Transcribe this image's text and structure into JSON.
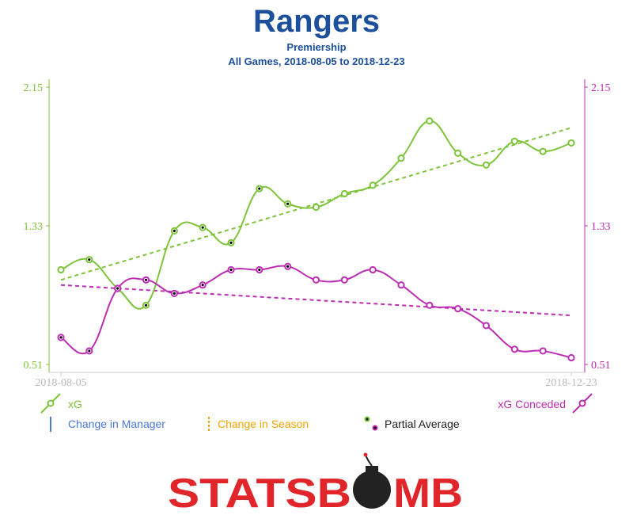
{
  "header": {
    "title": "Rangers",
    "subtitle": "Premiership",
    "range": "All Games, 2018-08-05 to 2018-12-23"
  },
  "colors": {
    "xg": "#7dc43a",
    "xga": "#bd2db4",
    "title": "#1c4f9c",
    "manager": "#4a78d8",
    "season": "#f0a400",
    "logo": "#e0262b",
    "bomb": "#222222"
  },
  "chart_data": {
    "type": "line",
    "x_start_label": "2018-08-05",
    "x_end_label": "2018-12-23",
    "y_left_ticks": [
      "2.15",
      "1.33",
      "0.51"
    ],
    "y_right_ticks": [
      "2.15",
      "1.33",
      "0.51"
    ],
    "ylim": [
      0.51,
      2.15
    ],
    "series": [
      {
        "name": "xG",
        "color": "#7dc43a",
        "values": [
          1.07,
          1.13,
          0.96,
          0.86,
          1.3,
          1.32,
          1.23,
          1.55,
          1.46,
          1.44,
          1.52,
          1.57,
          1.73,
          1.95,
          1.76,
          1.69,
          1.83,
          1.77,
          1.82
        ],
        "partial": [
          false,
          true,
          true,
          true,
          true,
          true,
          true,
          true,
          true,
          false,
          false,
          false,
          false,
          false,
          false,
          false,
          false,
          false,
          false
        ],
        "trend": [
          1.01,
          1.91
        ]
      },
      {
        "name": "xG Conceded",
        "color": "#bd2db4",
        "values": [
          0.67,
          0.59,
          0.96,
          1.01,
          0.93,
          0.98,
          1.07,
          1.07,
          1.09,
          1.01,
          1.01,
          1.07,
          0.98,
          0.86,
          0.84,
          0.74,
          0.6,
          0.59,
          0.55
        ],
        "partial": [
          true,
          true,
          true,
          true,
          true,
          true,
          true,
          true,
          true,
          false,
          false,
          false,
          false,
          false,
          false,
          false,
          false,
          false,
          false
        ],
        "trend": [
          0.98,
          0.8
        ]
      }
    ]
  },
  "legend": {
    "xg": "xG",
    "xga": "xG Conceded",
    "manager": "Change in Manager",
    "season": "Change in Season",
    "partial": "Partial Average"
  },
  "logo": {
    "left": "STATSB",
    "right": "MB"
  }
}
